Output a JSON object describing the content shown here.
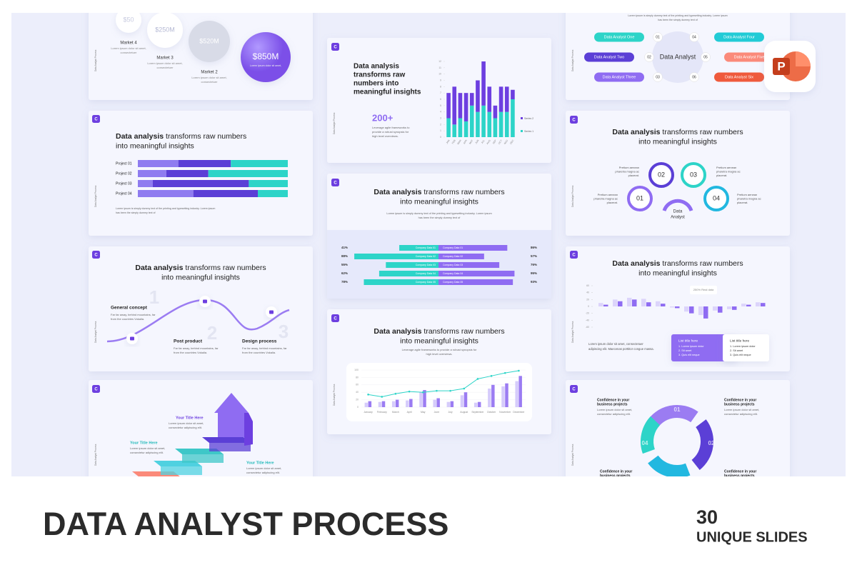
{
  "footer": {
    "title": "DATA ANALYST PROCESS",
    "count": "30",
    "count_label": "UNIQUE SLIDES"
  },
  "common": {
    "logo": "C",
    "side_label": "Data Analyst Process",
    "heading_bold": "Data analysis",
    "heading_rest": " transforms raw numbers",
    "heading_line2": "into meaningful insights",
    "lorem_1": "Lorem ipsum is simply dummy text of the printing and typesetting industry. Lorem ipsum",
    "lorem_2": "has been the simply dummy text of"
  },
  "app_icon": "P",
  "markets": {
    "bubbles": [
      {
        "value": "$50",
        "label": "Market 4"
      },
      {
        "value": "$250M",
        "label": "Market 3"
      },
      {
        "value": "$520M",
        "label": "Market 2"
      },
      {
        "value": "$850M"
      }
    ],
    "desc_1": "Lorem ipsum dolor sit amet,",
    "desc_2": "consectetuer"
  },
  "projects": {
    "rows": [
      {
        "name": "Project 01",
        "values": [
          27,
          35,
          38
        ]
      },
      {
        "name": "Project 02",
        "values": [
          19,
          28,
          53
        ]
      },
      {
        "name": "Project 03",
        "values": [
          10,
          64,
          26
        ]
      },
      {
        "name": "Project 04",
        "values": [
          37,
          43,
          20
        ]
      }
    ],
    "colors": [
      "#8f7cf0",
      "#5b3fd6",
      "#2dd4c8"
    ]
  },
  "stacked": {
    "heading": [
      "Data analysis",
      "transforms raw",
      "numbers into",
      "meaningful insights"
    ],
    "big": "200+",
    "text": [
      "Leverage agile frameworks to",
      "provide a robust synopsis for",
      "high level overviews."
    ],
    "categories": [
      "JAN",
      "FEB",
      "MAR",
      "APR",
      "MAY",
      "JUN",
      "JUL",
      "AUG",
      "SEP",
      "OCT",
      "NOV",
      "DEC"
    ],
    "series": [
      {
        "name": "Series 2",
        "color": "#6d3fe0",
        "values": [
          4,
          6,
          4,
          4.5,
          2,
          5,
          7,
          4,
          2,
          4,
          4,
          1.5
        ]
      },
      {
        "name": "Series 1",
        "color": "#2dd4c8",
        "values": [
          3,
          2,
          3,
          2.5,
          5,
          4,
          5,
          4,
          3,
          4,
          4,
          6
        ]
      }
    ],
    "ylim": [
      0,
      12
    ],
    "yticks": [
      0,
      1,
      2,
      3,
      4,
      5,
      6,
      7,
      8,
      9,
      10,
      11,
      12
    ]
  },
  "company": {
    "rows": [
      {
        "label": "Company Data 01",
        "left": 41,
        "left_label": "41%",
        "right": 86,
        "right_label": "86%"
      },
      {
        "label": "Company Data 02",
        "left": 88,
        "left_label": "88%",
        "right": 57,
        "right_label": "57%"
      },
      {
        "label": "Company Data 03",
        "left": 55,
        "left_label": "55%",
        "right": 76,
        "right_label": "76%"
      },
      {
        "label": "Company Data 04",
        "left": 62,
        "left_label": "62%",
        "right": 95,
        "right_label": "95%"
      },
      {
        "label": "Company Data 05",
        "left": 78,
        "left_label": "78%",
        "right": 93,
        "right_label": "93%"
      }
    ]
  },
  "monthly": {
    "text": [
      "Leverage agile frameworks to provide a robust synopsis for",
      "high level overviews."
    ],
    "categories": [
      "January",
      "February",
      "March",
      "April",
      "May",
      "June",
      "July",
      "August",
      "September",
      "October",
      "November",
      "December"
    ],
    "series": [
      {
        "color": "#d6ccfb",
        "values": [
          12,
          14,
          16,
          18,
          40,
          20,
          14,
          32,
          12,
          50,
          56,
          70
        ]
      },
      {
        "color": "#9b7cf2",
        "values": [
          16,
          16,
          20,
          22,
          46,
          24,
          16,
          40,
          14,
          60,
          64,
          84
        ]
      },
      {
        "color": "#2dd4c8",
        "values": [
          34,
          28,
          36,
          42,
          40,
          44,
          44,
          50,
          76,
          84,
          92,
          98
        ]
      }
    ],
    "ylim": [
      0,
      100
    ],
    "yticks": [
      0,
      20,
      40,
      60,
      80,
      100
    ]
  },
  "analysts": {
    "center": "Data Analyst",
    "items": [
      {
        "num": "01",
        "name": "Data Analyst One",
        "color": "#2dd4c8"
      },
      {
        "num": "02",
        "name": "Data Analyst Two",
        "color": "#5b3fd6"
      },
      {
        "num": "03",
        "name": "Data Analyst Three",
        "color": "#8f6cf2"
      },
      {
        "num": "04",
        "name": "Data Analyst Four",
        "color": "#22cbd6"
      },
      {
        "num": "05",
        "name": "Data Analyst Five",
        "color": "#fb8a7a"
      },
      {
        "num": "06",
        "name": "Data Analyst Six",
        "color": "#ef5a3c"
      }
    ]
  },
  "circles": {
    "center": [
      "Data",
      "Analyst"
    ],
    "nums": [
      "01",
      "02",
      "03",
      "04"
    ],
    "label": [
      "Pretium aenean",
      "pharetra magna ac",
      "placerat."
    ]
  },
  "perf": {
    "note": "250% Real data",
    "series": [
      {
        "color": "#dcd4fb",
        "values": [
          10,
          20,
          25,
          22,
          15,
          -3,
          -15,
          -25,
          -12,
          -8,
          8,
          12
        ]
      },
      {
        "color": "#8f6cf2",
        "values": [
          5,
          15,
          20,
          12,
          8,
          -5,
          -20,
          -35,
          -18,
          -10,
          5,
          10
        ]
      }
    ],
    "ylim": [
      -60,
      60
    ],
    "yticks": [
      -60,
      -40,
      -20,
      0,
      20,
      40,
      60
    ],
    "text": [
      "Lorem ipsum dolor sit amet, consectetuer",
      "adipiscing elit. Maecenas porttitor congue massa."
    ],
    "cards": [
      {
        "title": "List title here",
        "items": [
          "1. Lorem ipsum dolor",
          "2. Sit amet",
          "3. Quis elit neque"
        ]
      },
      {
        "title": "List title here",
        "items": [
          "1. Lorem ipsum dolor",
          "2. Sit amet",
          "3. Quis elit neque"
        ]
      }
    ]
  },
  "process": {
    "steps": [
      {
        "num": "1",
        "title": "General concept"
      },
      {
        "num": "2",
        "title": "Post product"
      },
      {
        "num": "3",
        "title": "Design process"
      }
    ],
    "desc_1": "Far far away, behind mountains, far",
    "desc_2": "from the countries Vokalia."
  },
  "stairs": {
    "title": "Your Title Here",
    "desc_1": "Lorem ipsum dolor sit amet,",
    "desc_2": "consectetur adipiscing elit."
  },
  "cycle": {
    "nums": [
      "01",
      "02",
      "04"
    ],
    "title_1": "Confidence in your",
    "title_2": "business projects",
    "desc_1": "Lorem ipsum dolor sit amet,",
    "desc_2": "consectetur adipiscing elit."
  }
}
